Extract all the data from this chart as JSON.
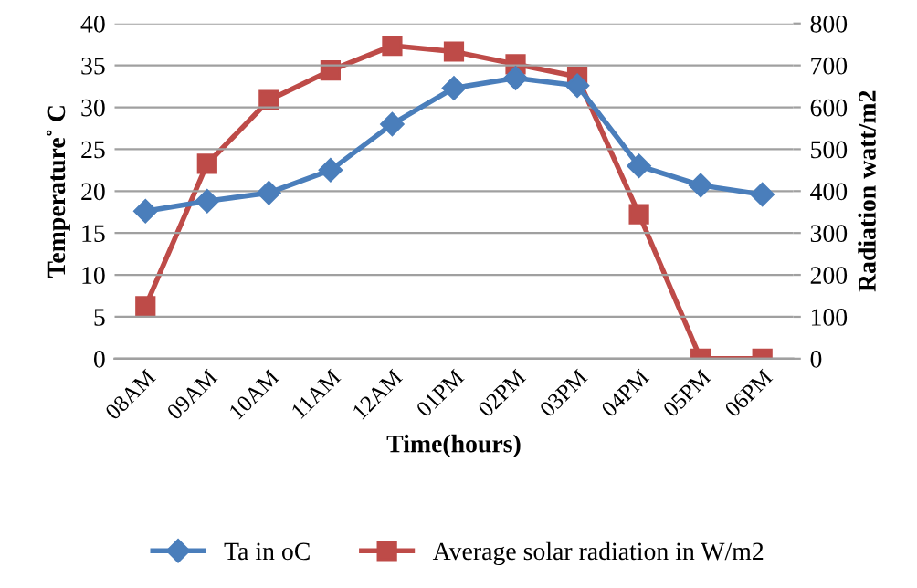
{
  "chart_data": {
    "type": "line",
    "xlabel": "Time(hours)",
    "ylabel": "Temperature˚ C",
    "y2label": "Radiation watt/m2",
    "categories": [
      "08AM",
      "09AM",
      "10AM",
      "11AM",
      "12AM",
      "01PM",
      "02PM",
      "03PM",
      "04PM",
      "05PM",
      "06PM"
    ],
    "series": [
      {
        "name": "Ta in oC",
        "color": "#4a7ebb",
        "marker": "diamond",
        "values": [
          17.6,
          18.8,
          19.8,
          22.5,
          28,
          32.3,
          33.5,
          32.6,
          23,
          20.7,
          19.6
        ]
      },
      {
        "name": "Average solar radiation in W/m2",
        "color": "#be4b48",
        "marker": "square",
        "axis": "y2",
        "values": [
          125,
          465,
          617,
          688,
          747,
          733,
          703,
          673,
          345,
          0,
          0
        ]
      }
    ],
    "ylim": [
      0,
      40
    ],
    "yticks": [
      0,
      5,
      10,
      15,
      20,
      25,
      30,
      35,
      40
    ],
    "y2lim": [
      0,
      800
    ],
    "y2ticks": [
      0,
      100,
      200,
      300,
      400,
      500,
      600,
      700,
      800
    ],
    "grid": "y",
    "legend": "bottom",
    "line_style": "solid"
  }
}
